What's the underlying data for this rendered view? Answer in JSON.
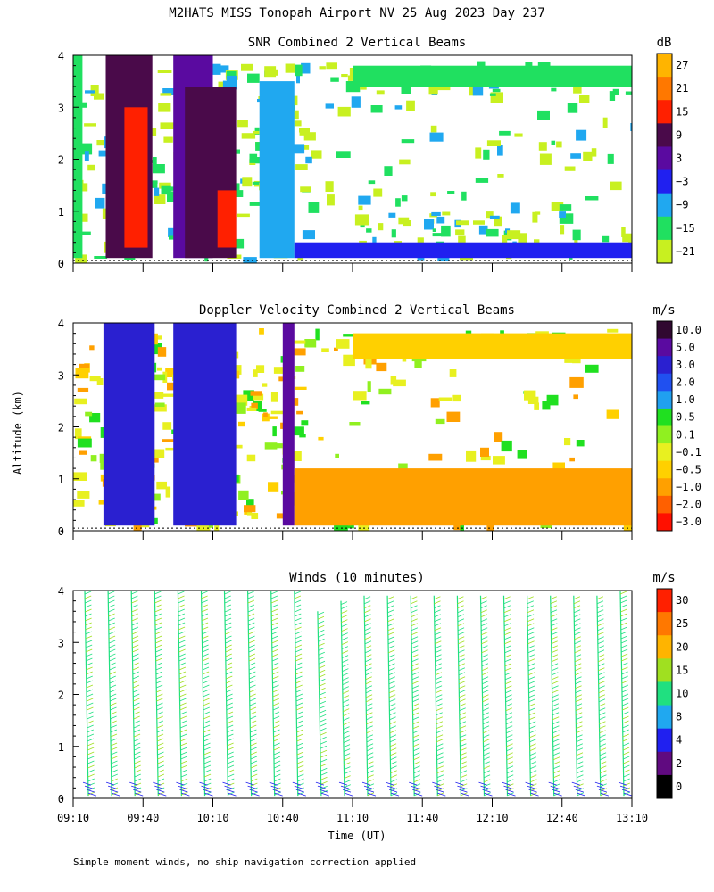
{
  "title": "M2HATS MISS Tonopah Airport NV  25 Aug 2023 Day 237",
  "ylabel": "Altitude (km)",
  "xlabel": "Time (UT)",
  "footnote": "Simple moment winds, no ship navigation correction applied",
  "chart_data": [
    {
      "type": "heatmap",
      "title": "SNR Combined 2 Vertical Beams",
      "units": "dB",
      "x_ticks": [
        "09:10",
        "09:40",
        "10:10",
        "10:40",
        "11:10",
        "11:40",
        "12:10",
        "12:40",
        "13:10"
      ],
      "y_ticks": [
        0,
        1,
        2,
        3,
        4
      ],
      "xlim_minutes_since_0910": [
        0,
        240
      ],
      "ylim_km": [
        0,
        4
      ],
      "colorbar_labels": [
        "27",
        "21",
        "15",
        "9",
        "3",
        "−3",
        "−9",
        "−15",
        "−21"
      ],
      "colorbar_colors": [
        "#ffb400",
        "#ff7800",
        "#ff2000",
        "#4a0a4a",
        "#5a0aa0",
        "#2020f0",
        "#20a8f0",
        "#20e060",
        "#c8f020"
      ],
      "regions": [
        {
          "t_start": 0,
          "t_end": 4,
          "alt_start": 0.1,
          "alt_end": 4,
          "snr_db": -15
        },
        {
          "t_start": 14,
          "t_end": 34,
          "alt_start": 0.1,
          "alt_end": 4,
          "snr_db": 9
        },
        {
          "t_start": 22,
          "t_end": 32,
          "alt_start": 0.3,
          "alt_end": 3.0,
          "snr_db": 15
        },
        {
          "t_start": 43,
          "t_end": 60,
          "alt_start": 0.1,
          "alt_end": 4,
          "snr_db": 3
        },
        {
          "t_start": 48,
          "t_end": 70,
          "alt_start": 0.1,
          "alt_end": 3.4,
          "snr_db": 9
        },
        {
          "t_start": 62,
          "t_end": 70,
          "alt_start": 0.3,
          "alt_end": 1.4,
          "snr_db": 15
        },
        {
          "t_start": 80,
          "t_end": 95,
          "alt_start": 0.1,
          "alt_end": 3.5,
          "snr_db": -9
        },
        {
          "t_start": 95,
          "t_end": 240,
          "alt_start": 0.1,
          "alt_end": 0.4,
          "snr_db": -3
        },
        {
          "t_start": 120,
          "t_end": 240,
          "alt_start": 3.4,
          "alt_end": 3.8,
          "snr_db": -15
        }
      ]
    },
    {
      "type": "heatmap",
      "title": "Doppler Velocity Combined 2 Vertical Beams",
      "units": "m/s",
      "x_ticks": [
        "09:10",
        "09:40",
        "10:10",
        "10:40",
        "11:10",
        "11:40",
        "12:10",
        "12:40",
        "13:10"
      ],
      "y_ticks": [
        0,
        1,
        2,
        3,
        4
      ],
      "xlim_minutes_since_0910": [
        0,
        240
      ],
      "ylim_km": [
        0,
        4
      ],
      "colorbar_labels": [
        "10.0",
        "5.0",
        "3.0",
        "2.0",
        "1.0",
        "0.5",
        "0.1",
        "−0.1",
        "−0.5",
        "−1.0",
        "−2.0",
        "−3.0"
      ],
      "colorbar_colors": [
        "#300830",
        "#5a0aa0",
        "#2a20d0",
        "#2050f0",
        "#20a0f0",
        "#20e020",
        "#90f020",
        "#e8f020",
        "#ffd000",
        "#ffa000",
        "#ff6000",
        "#ff1000"
      ],
      "regions": [
        {
          "t_start": 13,
          "t_end": 35,
          "alt_start": 0.1,
          "alt_end": 4,
          "velocity_ms": 3.0
        },
        {
          "t_start": 43,
          "t_end": 70,
          "alt_start": 0.1,
          "alt_end": 4,
          "velocity_ms": 3.0
        },
        {
          "t_start": 90,
          "t_end": 95,
          "alt_start": 0.1,
          "alt_end": 4,
          "velocity_ms": 5.0
        },
        {
          "t_start": 95,
          "t_end": 240,
          "alt_start": 0.1,
          "alt_end": 1.2,
          "velocity_ms": -1.0
        },
        {
          "t_start": 120,
          "t_end": 240,
          "alt_start": 3.3,
          "alt_end": 3.8,
          "velocity_ms": -0.5
        }
      ]
    },
    {
      "type": "scatter",
      "subtype": "wind-barbs",
      "title": "Winds (10 minutes)",
      "units": "m/s",
      "x_ticks": [
        "09:10",
        "09:40",
        "10:10",
        "10:40",
        "11:10",
        "11:40",
        "12:10",
        "12:40",
        "13:10"
      ],
      "y_ticks": [
        0,
        1,
        2,
        3,
        4
      ],
      "xlim_minutes_since_0910": [
        0,
        240
      ],
      "ylim_km": [
        0,
        4
      ],
      "colorbar_labels": [
        "30",
        "25",
        "20",
        "15",
        "10",
        "8",
        "4",
        "2",
        "0"
      ],
      "colorbar_colors": [
        "#ff2000",
        "#ff7800",
        "#ffb400",
        "#a0e020",
        "#20e080",
        "#20a8f0",
        "#2020f0",
        "#600a80",
        "#000000"
      ],
      "profiles_minutes_since_0910": [
        5,
        15,
        25,
        35,
        45,
        55,
        65,
        75,
        85,
        95,
        105,
        115,
        125,
        135,
        145,
        155,
        165,
        175,
        185,
        195,
        205,
        215,
        225,
        235
      ],
      "typical_speed_ms": 12,
      "top_altitude_km": [
        4,
        4,
        4,
        4,
        4,
        4,
        4,
        4,
        4,
        4,
        3.6,
        3.8,
        3.9,
        3.9,
        3.9,
        3.9,
        3.9,
        3.9,
        3.9,
        3.9,
        3.9,
        3.9,
        3.9,
        4
      ]
    }
  ]
}
